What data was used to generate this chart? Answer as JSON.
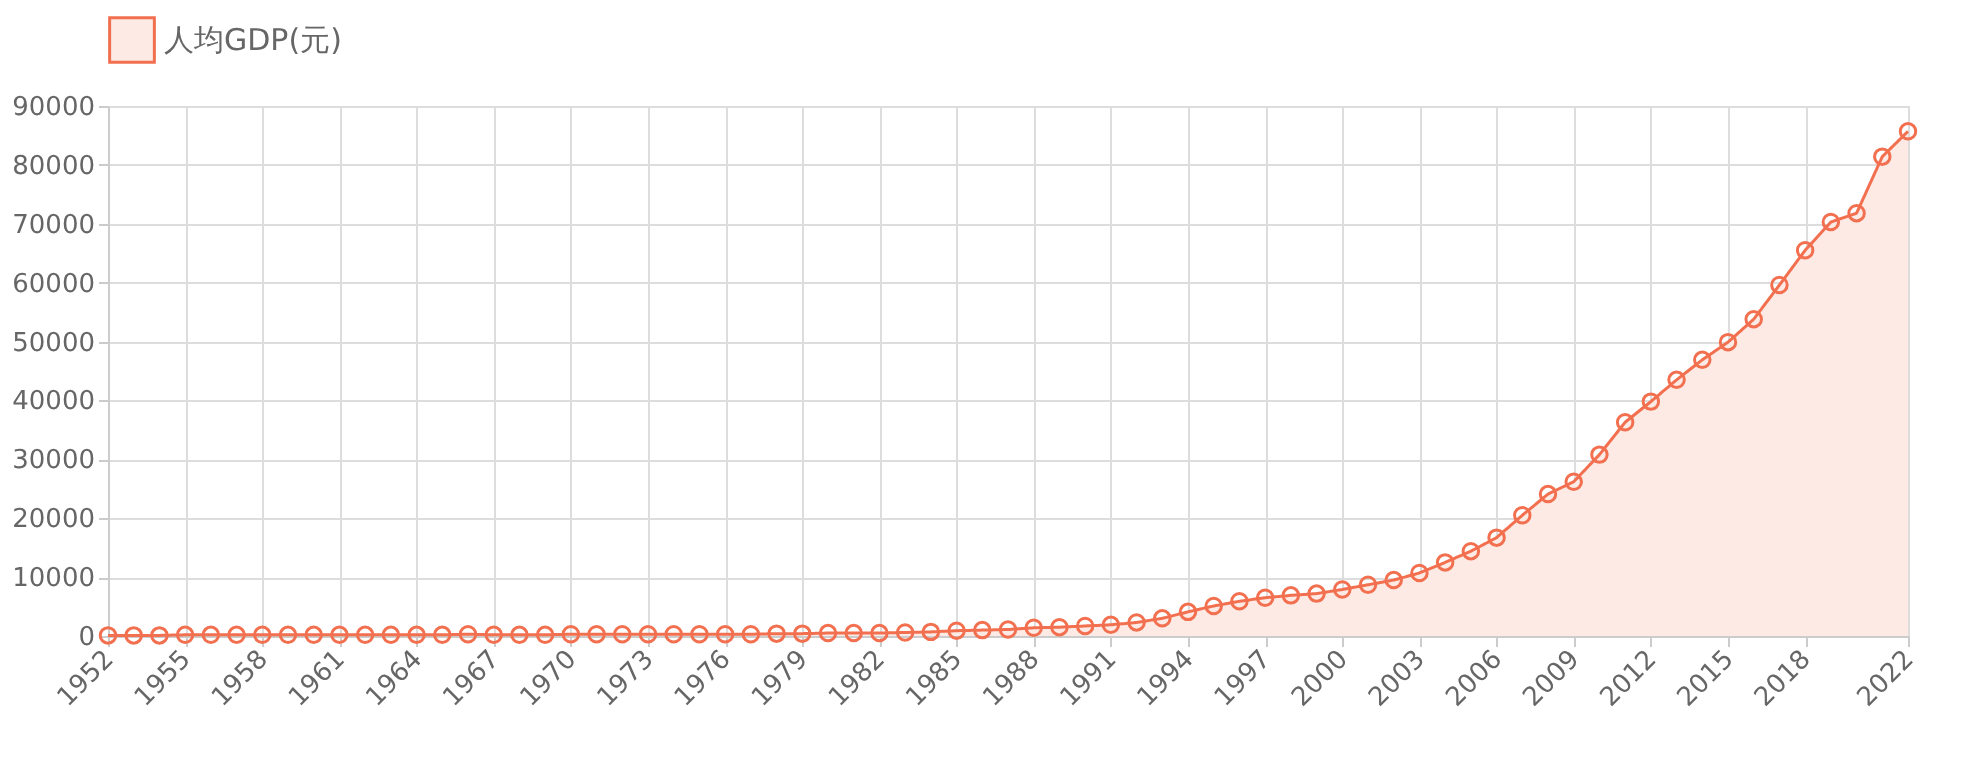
{
  "chart_data": {
    "type": "area",
    "categories": [
      "1952",
      null,
      null,
      "1955",
      null,
      null,
      "1958",
      null,
      null,
      "1961",
      null,
      null,
      "1964",
      null,
      null,
      "1967",
      null,
      null,
      "1970",
      null,
      null,
      "1973",
      null,
      null,
      "1976",
      null,
      null,
      "1979",
      null,
      null,
      "1982",
      null,
      null,
      "1985",
      null,
      null,
      "1988",
      null,
      null,
      "1991",
      null,
      null,
      "1994",
      null,
      null,
      "1997",
      null,
      null,
      "2000",
      null,
      null,
      "2003",
      null,
      null,
      "2006",
      null,
      null,
      "2009",
      null,
      null,
      "2012",
      null,
      null,
      "2015",
      null,
      null,
      "2018",
      null,
      null,
      null,
      "2022"
    ],
    "series": [
      {
        "name": "人均GDP(元)",
        "color": "#f2704f",
        "values": [
          100,
          100,
          100,
          200,
          200,
          200,
          200,
          200,
          200,
          200,
          200,
          200,
          200,
          200,
          300,
          200,
          200,
          200,
          300,
          300,
          300,
          300,
          300,
          300,
          300,
          300,
          400,
          400,
          500,
          500,
          500,
          600,
          700,
          900,
          1000,
          1100,
          1400,
          1500,
          1700,
          1900,
          2300,
          3000,
          4100,
          5100,
          5900,
          6500,
          6900,
          7200,
          7900,
          8700,
          9500,
          10700,
          12500,
          14400,
          16700,
          20500,
          24100,
          26200,
          30800,
          36300,
          39800,
          43500,
          46900,
          49900,
          53800,
          59600,
          65500,
          70300,
          71800,
          81400,
          85700
        ]
      }
    ],
    "ylim": [
      0,
      90000
    ],
    "yticks": [
      0,
      10000,
      20000,
      30000,
      40000,
      50000,
      60000,
      70000,
      80000,
      90000
    ],
    "grid": true,
    "legend": "top",
    "marker": "circle",
    "line_style": "solid"
  }
}
